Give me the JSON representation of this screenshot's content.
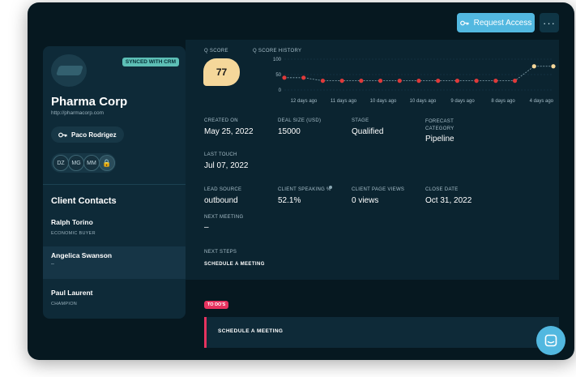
{
  "header": {
    "request_label": "Request Access",
    "more_label": "···"
  },
  "account": {
    "crm_badge": "SYNCED WITH CRM",
    "name": "Pharma Corp",
    "url": "http://pharmacorp.com",
    "owner": "Paco Rodrigez",
    "avatars": [
      "DZ",
      "MG",
      "MM"
    ]
  },
  "contacts": {
    "title": "Client Contacts",
    "items": [
      {
        "name": "Ralph Torino",
        "role": "ECONOMIC BUYER"
      },
      {
        "name": "Angelica Swanson",
        "role": "–"
      },
      {
        "name": "Paul Laurent",
        "role": "CHAMPION"
      }
    ]
  },
  "qscore": {
    "label": "Q SCORE",
    "value": "77",
    "history_label": "Q SCORE HISTORY"
  },
  "chart_data": {
    "type": "line",
    "yticks": [
      "100",
      "50",
      "0"
    ],
    "ylim": [
      0,
      100
    ],
    "xticks": [
      "12 days ago",
      "11 days ago",
      "10 days ago",
      "10 days ago",
      "9 days ago",
      "8 days ago",
      "4 days ago"
    ],
    "values": [
      40,
      40,
      30,
      30,
      30,
      30,
      30,
      30,
      30,
      30,
      30,
      30,
      30,
      77,
      77
    ],
    "colors": {
      "low": "#e03a3a",
      "high": "#f5d79a",
      "line": "#8aa7b3"
    }
  },
  "fields": {
    "created_on": {
      "label": "CREATED ON",
      "value": "May 25, 2022"
    },
    "deal_size": {
      "label": "DEAL SIZE (USD)",
      "value": "15000"
    },
    "stage": {
      "label": "STAGE",
      "value": "Qualified"
    },
    "forecast": {
      "label": "FORECAST CATEGORY",
      "value": "Pipeline"
    },
    "last_touch": {
      "label": "LAST TOUCH",
      "value": "Jul 07, 2022"
    },
    "lead_source": {
      "label": "LEAD SOURCE",
      "value": "outbound"
    },
    "client_speaking": {
      "label": "CLIENT SPEAKING %",
      "value": "52.1%"
    },
    "page_views": {
      "label": "CLIENT PAGE VIEWS",
      "value": "0 views"
    },
    "close_date": {
      "label": "CLOSE DATE",
      "value": "Oct 31, 2022"
    },
    "next_meeting": {
      "label": "NEXT MEETING",
      "value": "–"
    },
    "next_steps": {
      "label": "NEXT STEPS",
      "value": "SCHEDULE A MEETING"
    }
  },
  "todos": {
    "badge": "TO DO'S",
    "items": [
      "SCHEDULE A MEETING"
    ]
  }
}
